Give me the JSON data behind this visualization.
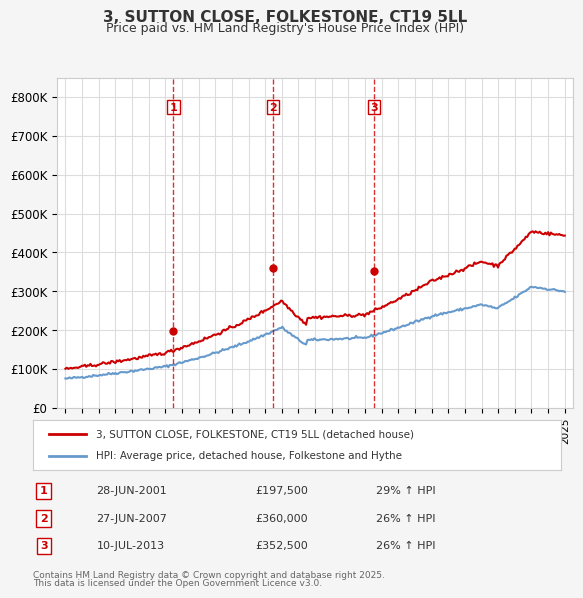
{
  "title": "3, SUTTON CLOSE, FOLKESTONE, CT19 5LL",
  "subtitle": "Price paid vs. HM Land Registry's House Price Index (HPI)",
  "transactions": [
    {
      "num": 1,
      "date": "28-JUN-2001",
      "price": 197500,
      "year": 2001.49,
      "pct": "29%"
    },
    {
      "num": 2,
      "date": "27-JUN-2007",
      "price": 360000,
      "year": 2007.49,
      "pct": "26%"
    },
    {
      "num": 3,
      "date": "10-JUL-2013",
      "price": 352500,
      "year": 2013.53,
      "pct": "26%"
    }
  ],
  "legend_line1": "3, SUTTON CLOSE, FOLKESTONE, CT19 5LL (detached house)",
  "legend_line2": "HPI: Average price, detached house, Folkestone and Hythe",
  "footer1": "Contains HM Land Registry data © Crown copyright and database right 2025.",
  "footer2": "This data is licensed under the Open Government Licence v3.0.",
  "line_color_red": "#cc0000",
  "line_color_blue": "#6699cc",
  "dashed_color": "#cc0000",
  "background_color": "#f5f5f5",
  "plot_bg": "#ffffff",
  "ylim": [
    0,
    850000
  ],
  "xlim": [
    1994.5,
    2025.5
  ],
  "yticks": [
    0,
    100000,
    200000,
    300000,
    400000,
    500000,
    600000,
    700000,
    800000
  ],
  "ytick_labels": [
    "£0",
    "£100K",
    "£200K",
    "£300K",
    "£400K",
    "£500K",
    "£600K",
    "£700K",
    "£800K"
  ],
  "xticks": [
    1995,
    1996,
    1997,
    1998,
    1999,
    2000,
    2001,
    2002,
    2003,
    2004,
    2005,
    2006,
    2007,
    2008,
    2009,
    2010,
    2011,
    2012,
    2013,
    2014,
    2015,
    2016,
    2017,
    2018,
    2019,
    2020,
    2021,
    2022,
    2023,
    2024,
    2025
  ]
}
